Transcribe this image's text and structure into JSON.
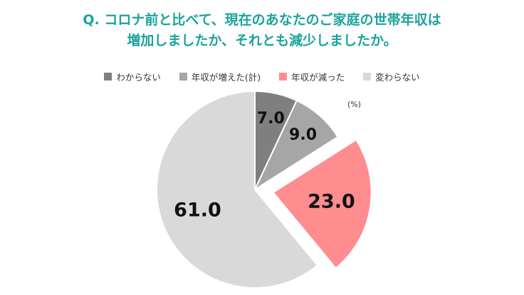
{
  "title_lines": [
    "Q. コロナ前と比べて、現在のあなたのご家庭の世帯年収は",
    "増加しましたか、それとも減少しましたか。"
  ],
  "unit": "(%)",
  "chart_data": {
    "type": "pie",
    "title": "Q. コロナ前と比べて、現在のあなたのご家庭の世帯年収は増加しましたか、それとも減少しましたか。",
    "unit": "%",
    "legend_position": "top",
    "categories": [
      "わからない",
      "年収が増えた(計)",
      "年収が減った",
      "変わらない"
    ],
    "values": [
      7.0,
      9.0,
      23.0,
      61.0
    ],
    "labels": [
      "7.0",
      "9.0",
      "23.0",
      "61.0"
    ],
    "colors": [
      "#7f7f7f",
      "#a6a6a6",
      "#ff8c8f",
      "#d9d9d9"
    ],
    "exploded": [
      false,
      false,
      true,
      false
    ]
  }
}
